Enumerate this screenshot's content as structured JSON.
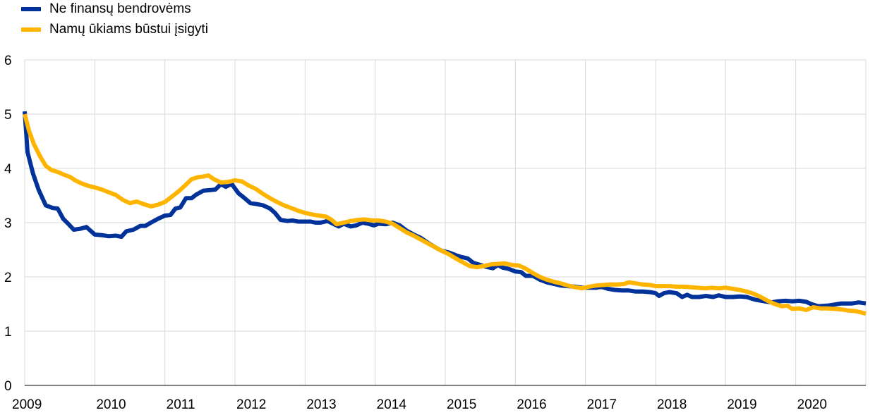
{
  "chart_data": {
    "type": "line",
    "title": "",
    "xlabel": "",
    "ylabel": "",
    "ylim": [
      0,
      6
    ],
    "xlim": [
      2009,
      2021
    ],
    "yticks": [
      "0",
      "1",
      "2",
      "3",
      "4",
      "5",
      "6"
    ],
    "xticks": [
      "2009",
      "2010",
      "2011",
      "2012",
      "2013",
      "2014",
      "2015",
      "2016",
      "2017",
      "2018",
      "2019",
      "2020"
    ],
    "grid": true,
    "legend_position": "top-left",
    "series": [
      {
        "name": "Ne finansų bendrovėms",
        "color": "#003299",
        "points": [
          [
            2009.0,
            5.05
          ],
          [
            2009.04,
            4.3
          ],
          [
            2009.12,
            3.9
          ],
          [
            2009.2,
            3.6
          ],
          [
            2009.3,
            3.32
          ],
          [
            2009.4,
            3.27
          ],
          [
            2009.47,
            3.26
          ],
          [
            2009.55,
            3.07
          ],
          [
            2009.62,
            2.98
          ],
          [
            2009.7,
            2.87
          ],
          [
            2009.8,
            2.89
          ],
          [
            2009.88,
            2.92
          ],
          [
            2010.0,
            2.78
          ],
          [
            2010.1,
            2.77
          ],
          [
            2010.2,
            2.75
          ],
          [
            2010.3,
            2.76
          ],
          [
            2010.38,
            2.74
          ],
          [
            2010.45,
            2.84
          ],
          [
            2010.55,
            2.87
          ],
          [
            2010.65,
            2.94
          ],
          [
            2010.72,
            2.94
          ],
          [
            2010.8,
            3.0
          ],
          [
            2010.9,
            3.07
          ],
          [
            2011.0,
            3.13
          ],
          [
            2011.08,
            3.14
          ],
          [
            2011.15,
            3.26
          ],
          [
            2011.22,
            3.28
          ],
          [
            2011.3,
            3.45
          ],
          [
            2011.38,
            3.45
          ],
          [
            2011.45,
            3.52
          ],
          [
            2011.55,
            3.59
          ],
          [
            2011.65,
            3.6
          ],
          [
            2011.72,
            3.61
          ],
          [
            2011.8,
            3.71
          ],
          [
            2011.87,
            3.66
          ],
          [
            2011.95,
            3.72
          ],
          [
            2012.05,
            3.54
          ],
          [
            2012.12,
            3.47
          ],
          [
            2012.22,
            3.36
          ],
          [
            2012.32,
            3.34
          ],
          [
            2012.4,
            3.32
          ],
          [
            2012.5,
            3.26
          ],
          [
            2012.57,
            3.18
          ],
          [
            2012.65,
            3.05
          ],
          [
            2012.75,
            3.03
          ],
          [
            2012.82,
            3.04
          ],
          [
            2012.9,
            3.02
          ],
          [
            2013.0,
            3.02
          ],
          [
            2013.08,
            3.02
          ],
          [
            2013.15,
            3.0
          ],
          [
            2013.22,
            3.0
          ],
          [
            2013.32,
            3.03
          ],
          [
            2013.4,
            2.98
          ],
          [
            2013.48,
            2.93
          ],
          [
            2013.55,
            2.98
          ],
          [
            2013.65,
            2.93
          ],
          [
            2013.73,
            2.95
          ],
          [
            2013.82,
            3.0
          ],
          [
            2013.9,
            2.98
          ],
          [
            2013.98,
            2.95
          ],
          [
            2014.05,
            2.98
          ],
          [
            2014.15,
            2.97
          ],
          [
            2014.25,
            3.0
          ],
          [
            2014.35,
            2.95
          ],
          [
            2014.45,
            2.85
          ],
          [
            2014.55,
            2.78
          ],
          [
            2014.65,
            2.72
          ],
          [
            2014.75,
            2.63
          ],
          [
            2014.85,
            2.55
          ],
          [
            2014.95,
            2.48
          ],
          [
            2015.05,
            2.45
          ],
          [
            2015.15,
            2.4
          ],
          [
            2015.22,
            2.37
          ],
          [
            2015.32,
            2.34
          ],
          [
            2015.4,
            2.26
          ],
          [
            2015.5,
            2.22
          ],
          [
            2015.6,
            2.18
          ],
          [
            2015.68,
            2.16
          ],
          [
            2015.75,
            2.22
          ],
          [
            2015.82,
            2.17
          ],
          [
            2015.9,
            2.15
          ],
          [
            2016.0,
            2.1
          ],
          [
            2016.08,
            2.09
          ],
          [
            2016.15,
            2.02
          ],
          [
            2016.25,
            2.02
          ],
          [
            2016.35,
            1.95
          ],
          [
            2016.45,
            1.9
          ],
          [
            2016.55,
            1.87
          ],
          [
            2016.65,
            1.84
          ],
          [
            2016.75,
            1.83
          ],
          [
            2016.85,
            1.82
          ],
          [
            2016.95,
            1.8
          ],
          [
            2017.05,
            1.8
          ],
          [
            2017.15,
            1.8
          ],
          [
            2017.22,
            1.82
          ],
          [
            2017.32,
            1.78
          ],
          [
            2017.42,
            1.76
          ],
          [
            2017.52,
            1.75
          ],
          [
            2017.62,
            1.75
          ],
          [
            2017.72,
            1.73
          ],
          [
            2017.82,
            1.73
          ],
          [
            2017.92,
            1.72
          ],
          [
            2018.0,
            1.7
          ],
          [
            2018.05,
            1.65
          ],
          [
            2018.12,
            1.7
          ],
          [
            2018.2,
            1.72
          ],
          [
            2018.3,
            1.7
          ],
          [
            2018.38,
            1.63
          ],
          [
            2018.45,
            1.67
          ],
          [
            2018.52,
            1.63
          ],
          [
            2018.62,
            1.63
          ],
          [
            2018.72,
            1.65
          ],
          [
            2018.82,
            1.63
          ],
          [
            2018.9,
            1.66
          ],
          [
            2019.0,
            1.63
          ],
          [
            2019.1,
            1.63
          ],
          [
            2019.2,
            1.64
          ],
          [
            2019.3,
            1.63
          ],
          [
            2019.42,
            1.58
          ],
          [
            2019.55,
            1.55
          ],
          [
            2019.65,
            1.53
          ],
          [
            2019.75,
            1.55
          ],
          [
            2019.85,
            1.56
          ],
          [
            2019.95,
            1.55
          ],
          [
            2020.05,
            1.56
          ],
          [
            2020.15,
            1.54
          ],
          [
            2020.22,
            1.5
          ],
          [
            2020.32,
            1.46
          ],
          [
            2020.45,
            1.47
          ],
          [
            2020.55,
            1.49
          ],
          [
            2020.65,
            1.51
          ],
          [
            2020.72,
            1.51
          ],
          [
            2020.8,
            1.51
          ],
          [
            2020.9,
            1.53
          ],
          [
            2021.0,
            1.51
          ]
        ]
      },
      {
        "name": "Namų ūkiams būstui įsigyti",
        "color": "#ffb400",
        "points": [
          [
            2009.0,
            5.0
          ],
          [
            2009.06,
            4.7
          ],
          [
            2009.13,
            4.45
          ],
          [
            2009.22,
            4.22
          ],
          [
            2009.3,
            4.05
          ],
          [
            2009.38,
            3.97
          ],
          [
            2009.48,
            3.93
          ],
          [
            2009.55,
            3.89
          ],
          [
            2009.65,
            3.84
          ],
          [
            2009.72,
            3.78
          ],
          [
            2009.8,
            3.73
          ],
          [
            2009.9,
            3.68
          ],
          [
            2010.0,
            3.65
          ],
          [
            2010.1,
            3.61
          ],
          [
            2010.2,
            3.56
          ],
          [
            2010.3,
            3.51
          ],
          [
            2010.4,
            3.42
          ],
          [
            2010.5,
            3.36
          ],
          [
            2010.6,
            3.39
          ],
          [
            2010.7,
            3.34
          ],
          [
            2010.8,
            3.3
          ],
          [
            2010.9,
            3.33
          ],
          [
            2011.0,
            3.38
          ],
          [
            2011.1,
            3.48
          ],
          [
            2011.2,
            3.58
          ],
          [
            2011.3,
            3.7
          ],
          [
            2011.38,
            3.8
          ],
          [
            2011.48,
            3.84
          ],
          [
            2011.55,
            3.85
          ],
          [
            2011.62,
            3.87
          ],
          [
            2011.7,
            3.8
          ],
          [
            2011.8,
            3.74
          ],
          [
            2011.9,
            3.75
          ],
          [
            2012.0,
            3.78
          ],
          [
            2012.1,
            3.76
          ],
          [
            2012.2,
            3.68
          ],
          [
            2012.3,
            3.62
          ],
          [
            2012.4,
            3.53
          ],
          [
            2012.5,
            3.45
          ],
          [
            2012.6,
            3.38
          ],
          [
            2012.7,
            3.32
          ],
          [
            2012.8,
            3.27
          ],
          [
            2012.9,
            3.22
          ],
          [
            2013.0,
            3.18
          ],
          [
            2013.1,
            3.15
          ],
          [
            2013.2,
            3.13
          ],
          [
            2013.3,
            3.11
          ],
          [
            2013.38,
            3.05
          ],
          [
            2013.45,
            2.97
          ],
          [
            2013.55,
            3.0
          ],
          [
            2013.65,
            3.03
          ],
          [
            2013.75,
            3.05
          ],
          [
            2013.85,
            3.06
          ],
          [
            2013.95,
            3.04
          ],
          [
            2014.05,
            3.04
          ],
          [
            2014.15,
            3.02
          ],
          [
            2014.25,
            2.98
          ],
          [
            2014.35,
            2.9
          ],
          [
            2014.45,
            2.82
          ],
          [
            2014.55,
            2.76
          ],
          [
            2014.65,
            2.69
          ],
          [
            2014.75,
            2.62
          ],
          [
            2014.85,
            2.55
          ],
          [
            2014.95,
            2.48
          ],
          [
            2015.05,
            2.42
          ],
          [
            2015.15,
            2.34
          ],
          [
            2015.25,
            2.27
          ],
          [
            2015.35,
            2.2
          ],
          [
            2015.45,
            2.18
          ],
          [
            2015.55,
            2.2
          ],
          [
            2015.65,
            2.23
          ],
          [
            2015.75,
            2.24
          ],
          [
            2015.85,
            2.25
          ],
          [
            2015.95,
            2.22
          ],
          [
            2016.05,
            2.21
          ],
          [
            2016.15,
            2.15
          ],
          [
            2016.25,
            2.07
          ],
          [
            2016.35,
            2.0
          ],
          [
            2016.45,
            1.95
          ],
          [
            2016.55,
            1.91
          ],
          [
            2016.65,
            1.88
          ],
          [
            2016.75,
            1.84
          ],
          [
            2016.85,
            1.81
          ],
          [
            2016.95,
            1.79
          ],
          [
            2017.05,
            1.82
          ],
          [
            2017.15,
            1.84
          ],
          [
            2017.25,
            1.85
          ],
          [
            2017.35,
            1.86
          ],
          [
            2017.45,
            1.86
          ],
          [
            2017.55,
            1.87
          ],
          [
            2017.62,
            1.9
          ],
          [
            2017.72,
            1.88
          ],
          [
            2017.82,
            1.86
          ],
          [
            2017.92,
            1.85
          ],
          [
            2018.0,
            1.83
          ],
          [
            2018.1,
            1.83
          ],
          [
            2018.2,
            1.83
          ],
          [
            2018.3,
            1.82
          ],
          [
            2018.4,
            1.82
          ],
          [
            2018.5,
            1.81
          ],
          [
            2018.6,
            1.8
          ],
          [
            2018.7,
            1.79
          ],
          [
            2018.8,
            1.8
          ],
          [
            2018.9,
            1.79
          ],
          [
            2019.0,
            1.8
          ],
          [
            2019.1,
            1.78
          ],
          [
            2019.2,
            1.76
          ],
          [
            2019.3,
            1.73
          ],
          [
            2019.4,
            1.69
          ],
          [
            2019.5,
            1.63
          ],
          [
            2019.6,
            1.56
          ],
          [
            2019.7,
            1.5
          ],
          [
            2019.8,
            1.46
          ],
          [
            2019.88,
            1.47
          ],
          [
            2019.95,
            1.41
          ],
          [
            2020.05,
            1.42
          ],
          [
            2020.15,
            1.39
          ],
          [
            2020.25,
            1.44
          ],
          [
            2020.35,
            1.42
          ],
          [
            2020.45,
            1.42
          ],
          [
            2020.55,
            1.41
          ],
          [
            2020.65,
            1.4
          ],
          [
            2020.75,
            1.38
          ],
          [
            2020.85,
            1.37
          ],
          [
            2020.95,
            1.34
          ],
          [
            2021.0,
            1.32
          ]
        ]
      }
    ]
  }
}
